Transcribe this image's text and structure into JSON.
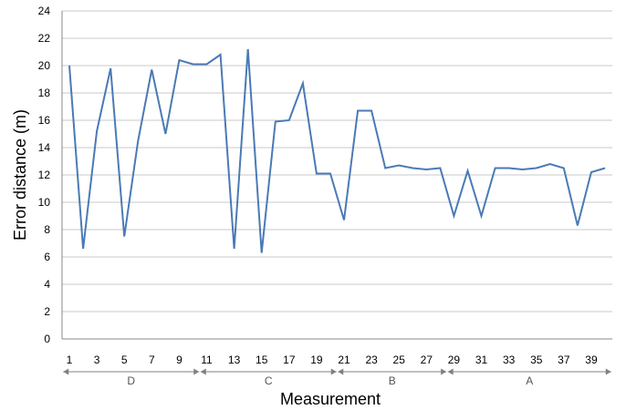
{
  "chart_data": {
    "type": "line",
    "title": "",
    "xlabel": "Measurement",
    "ylabel": "Error distance (m)",
    "ylim": [
      0,
      24
    ],
    "yticks": [
      0,
      2,
      4,
      6,
      8,
      10,
      12,
      14,
      16,
      18,
      20,
      22,
      24
    ],
    "xlim": [
      1,
      40
    ],
    "xtick_labels": [
      "1",
      "3",
      "5",
      "7",
      "9",
      "11",
      "13",
      "15",
      "17",
      "19",
      "21",
      "23",
      "25",
      "27",
      "29",
      "31",
      "33",
      "35",
      "37",
      "39"
    ],
    "grid": "horizontal",
    "colors": {
      "line": "#4a7ab5",
      "grid": "#c8c8c8",
      "axis": "#888888",
      "arrow": "#808080"
    },
    "series": [
      {
        "x": [
          1,
          2,
          3,
          4,
          5,
          6,
          7,
          8,
          9,
          10,
          11,
          12,
          13,
          14,
          15,
          16,
          17,
          18,
          19,
          20,
          21,
          22,
          23,
          24,
          25,
          26,
          27,
          28,
          29,
          30,
          31,
          32,
          33,
          34,
          35,
          36,
          37,
          38,
          39,
          40
        ],
        "values": [
          20.0,
          6.6,
          15.2,
          19.8,
          7.5,
          14.5,
          19.7,
          15.0,
          20.4,
          20.1,
          20.1,
          20.8,
          6.6,
          21.2,
          6.3,
          15.9,
          16.0,
          18.7,
          12.1,
          12.1,
          8.7,
          16.7,
          16.7,
          12.5,
          12.7,
          12.5,
          12.4,
          12.5,
          9.0,
          12.3,
          9.0,
          12.5,
          12.5,
          12.4,
          12.5,
          12.8,
          12.5,
          8.3,
          12.2,
          12.5
        ]
      }
    ],
    "groups": [
      {
        "label": "D",
        "from": 1,
        "to": 10
      },
      {
        "label": "C",
        "from": 11,
        "to": 20
      },
      {
        "label": "B",
        "from": 21,
        "to": 28
      },
      {
        "label": "A",
        "from": 29,
        "to": 40
      }
    ]
  }
}
